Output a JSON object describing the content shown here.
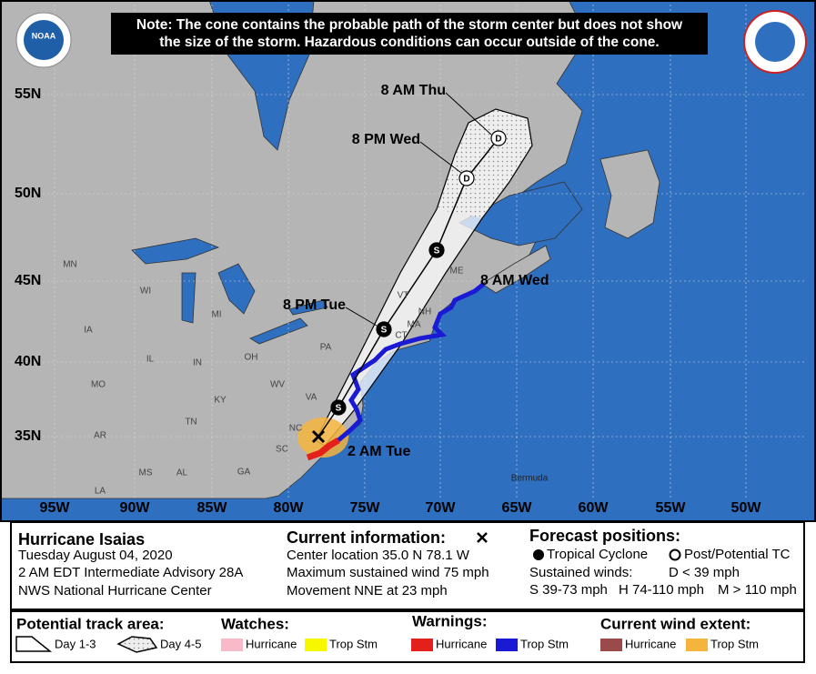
{
  "note": [
    "Note: The cone contains the probable path of the storm center but does not show",
    "the size of the storm. Hazardous conditions can occur outside of the cone."
  ],
  "logos": {
    "noaa": "NOAA"
  },
  "map": {
    "latitudes": [
      "55N",
      "50N",
      "45N",
      "40N",
      "35N"
    ],
    "longitudes": [
      "95W",
      "90W",
      "85W",
      "80W",
      "75W",
      "70W",
      "65W",
      "60W",
      "55W",
      "50W"
    ],
    "states": [
      "MN",
      "WI",
      "MI",
      "IA",
      "IL",
      "IN",
      "OH",
      "PA",
      "MO",
      "KY",
      "WV",
      "VA",
      "TN",
      "NC",
      "SC",
      "AR",
      "MS",
      "AL",
      "GA",
      "LA",
      "ME",
      "VT",
      "NH",
      "MA",
      "CT"
    ],
    "places": [
      "Bermuda"
    ],
    "forecast_labels": [
      "8 AM Thu",
      "8 PM Wed",
      "8 AM Wed",
      "8 PM Tue",
      "2 AM Tue"
    ],
    "markers": [
      "S",
      "S",
      "S",
      "D",
      "D"
    ]
  },
  "info": {
    "storm": {
      "title": "Hurricane Isaias",
      "lines": [
        "Tuesday August 04, 2020",
        "2 AM EDT Intermediate Advisory 28A",
        "NWS National Hurricane Center"
      ]
    },
    "current": {
      "title": "Current information:",
      "lines": [
        "Center location 35.0 N 78.1 W",
        "Maximum sustained wind 75 mph",
        "Movement NNE at 23 mph"
      ]
    },
    "forecast": {
      "title": "Forecast positions:",
      "tropical": "Tropical Cyclone",
      "post": "Post/Potential TC",
      "winds_title": "Sustained winds:",
      "winds": [
        "D < 39 mph",
        "S 39-73 mph",
        "H 74-110 mph",
        "M > 110 mph"
      ]
    }
  },
  "legend": {
    "track": {
      "title": "Potential track area:",
      "items": [
        "Day 1-3",
        "Day 4-5"
      ]
    },
    "watches": {
      "title": "Watches:",
      "items": [
        "Hurricane",
        "Trop Stm"
      ]
    },
    "warnings": {
      "title": "Warnings:",
      "items": [
        "Hurricane",
        "Trop Stm"
      ]
    },
    "wind": {
      "title": "Current wind extent:",
      "items": [
        "Hurricane",
        "Trop Stm"
      ]
    }
  }
}
